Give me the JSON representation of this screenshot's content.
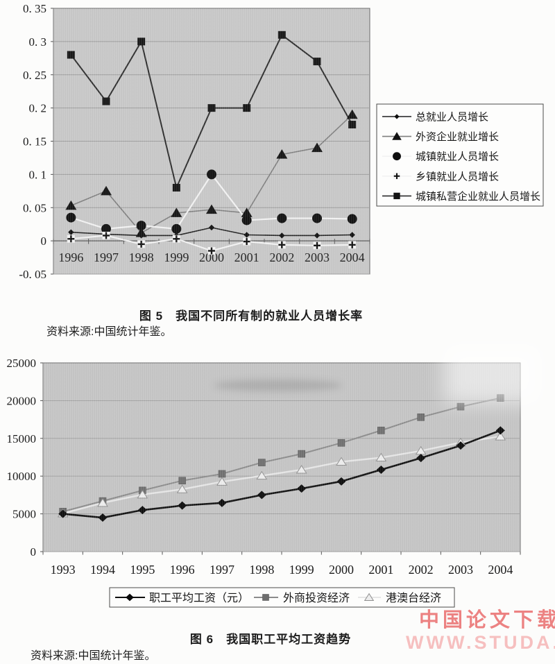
{
  "page": {
    "figure5": {
      "caption": "图 5　我国不同所有制的就业人员增长率",
      "source": "资料来源:中国统计年鉴。"
    },
    "figure6": {
      "caption": "图 6　我国职工平均工资趋势",
      "source": "资料来源:中国统计年鉴。"
    },
    "watermark": {
      "line1": "中国论文下载",
      "line2": "WWW.STUDA.",
      "color1": "#ec8282",
      "color2": "#f6bfbf"
    }
  },
  "chart_data": [
    {
      "type": "line",
      "title": "我国不同所有制的就业人员增长率",
      "categories": [
        "1996",
        "1997",
        "1998",
        "1999",
        "2000",
        "2001",
        "2002",
        "2003",
        "2004"
      ],
      "ylim": [
        -0.05,
        0.35
      ],
      "ytick_values": [
        0.35,
        0.3,
        0.25,
        0.2,
        0.15,
        0.1,
        0.05,
        0,
        -0.05
      ],
      "ytick_labels": [
        "0. 35",
        "0. 3",
        "0. 25",
        "0. 2",
        "0. 15",
        "0. 1",
        "0. 05",
        "0",
        "-0. 05"
      ],
      "grid": true,
      "legend_position": "right",
      "plot_bg": "#c7c7c7",
      "series": [
        {
          "name": "总就业人员增长",
          "marker": "diamond-s",
          "line_color": "#1f1f1f",
          "marker_color": "#0f0f0f",
          "values": [
            0.013,
            0.01,
            0.008,
            0.008,
            0.02,
            0.009,
            0.008,
            0.008,
            0.009
          ]
        },
        {
          "name": "外资企业就业增长",
          "marker": "triangle",
          "line_color": "#7e7e7e",
          "marker_color": "#121212",
          "values": [
            0.053,
            0.075,
            0.012,
            0.042,
            0.047,
            0.042,
            0.13,
            0.14,
            0.19
          ]
        },
        {
          "name": "城镇就业人员增长",
          "marker": "circle",
          "line_color": "#f2f2f2",
          "marker_color": "#0f0f0f",
          "values": [
            0.035,
            0.018,
            0.023,
            0.018,
            0.1,
            0.031,
            0.034,
            0.034,
            0.033
          ]
        },
        {
          "name": "乡镇就业人员增长",
          "marker": "plus",
          "line_color": "#f2f2f2",
          "marker_color": "#0f0f0f",
          "values": [
            0.003,
            0.008,
            -0.005,
            0.003,
            -0.015,
            -0.001,
            -0.006,
            -0.007,
            -0.006
          ]
        },
        {
          "name": "城镇私营企业就业人员增长",
          "marker": "square",
          "line_color": "#2c2c2c",
          "marker_color": "#141414",
          "values": [
            0.28,
            0.21,
            0.3,
            0.08,
            0.2,
            0.2,
            0.31,
            0.27,
            0.175
          ]
        }
      ]
    },
    {
      "type": "line",
      "title": "我国职工平均工资趋势",
      "categories": [
        "1993",
        "1994",
        "1995",
        "1996",
        "1997",
        "1998",
        "1999",
        "2000",
        "2001",
        "2002",
        "2003",
        "2004"
      ],
      "ylim": [
        0,
        25000
      ],
      "ytick_values": [
        25000,
        20000,
        15000,
        10000,
        5000,
        0
      ],
      "ytick_labels": [
        "25000",
        "20000",
        "15000",
        "10000",
        "5000",
        "0"
      ],
      "grid": true,
      "legend_position": "bottom",
      "plot_bg": "#c4c4c4",
      "series": [
        {
          "name": "职工平均工资（元）",
          "marker": "diamond",
          "line_color": "#101010",
          "marker_color": "#0a0a0a",
          "values": [
            5000,
            4500,
            5500,
            6100,
            6450,
            7500,
            8350,
            9300,
            10850,
            12400,
            14050,
            16050
          ]
        },
        {
          "name": "外商投资经济",
          "marker": "square-gray",
          "line_color": "#8b8b8b",
          "marker_color": "#6e6e6e",
          "marker_stroke": "#595959",
          "values": [
            5300,
            6700,
            8100,
            9400,
            10300,
            11800,
            12950,
            14400,
            16050,
            17800,
            19200,
            20350
          ]
        },
        {
          "name": "港澳台经济",
          "marker": "triangle-light",
          "line_color": "#e6e6e6",
          "marker_color": "#ededed",
          "marker_stroke": "#8f8f8f",
          "values": [
            5050,
            6450,
            7550,
            8250,
            9250,
            10050,
            10850,
            11900,
            12450,
            13350,
            14450,
            15250
          ]
        }
      ]
    }
  ]
}
